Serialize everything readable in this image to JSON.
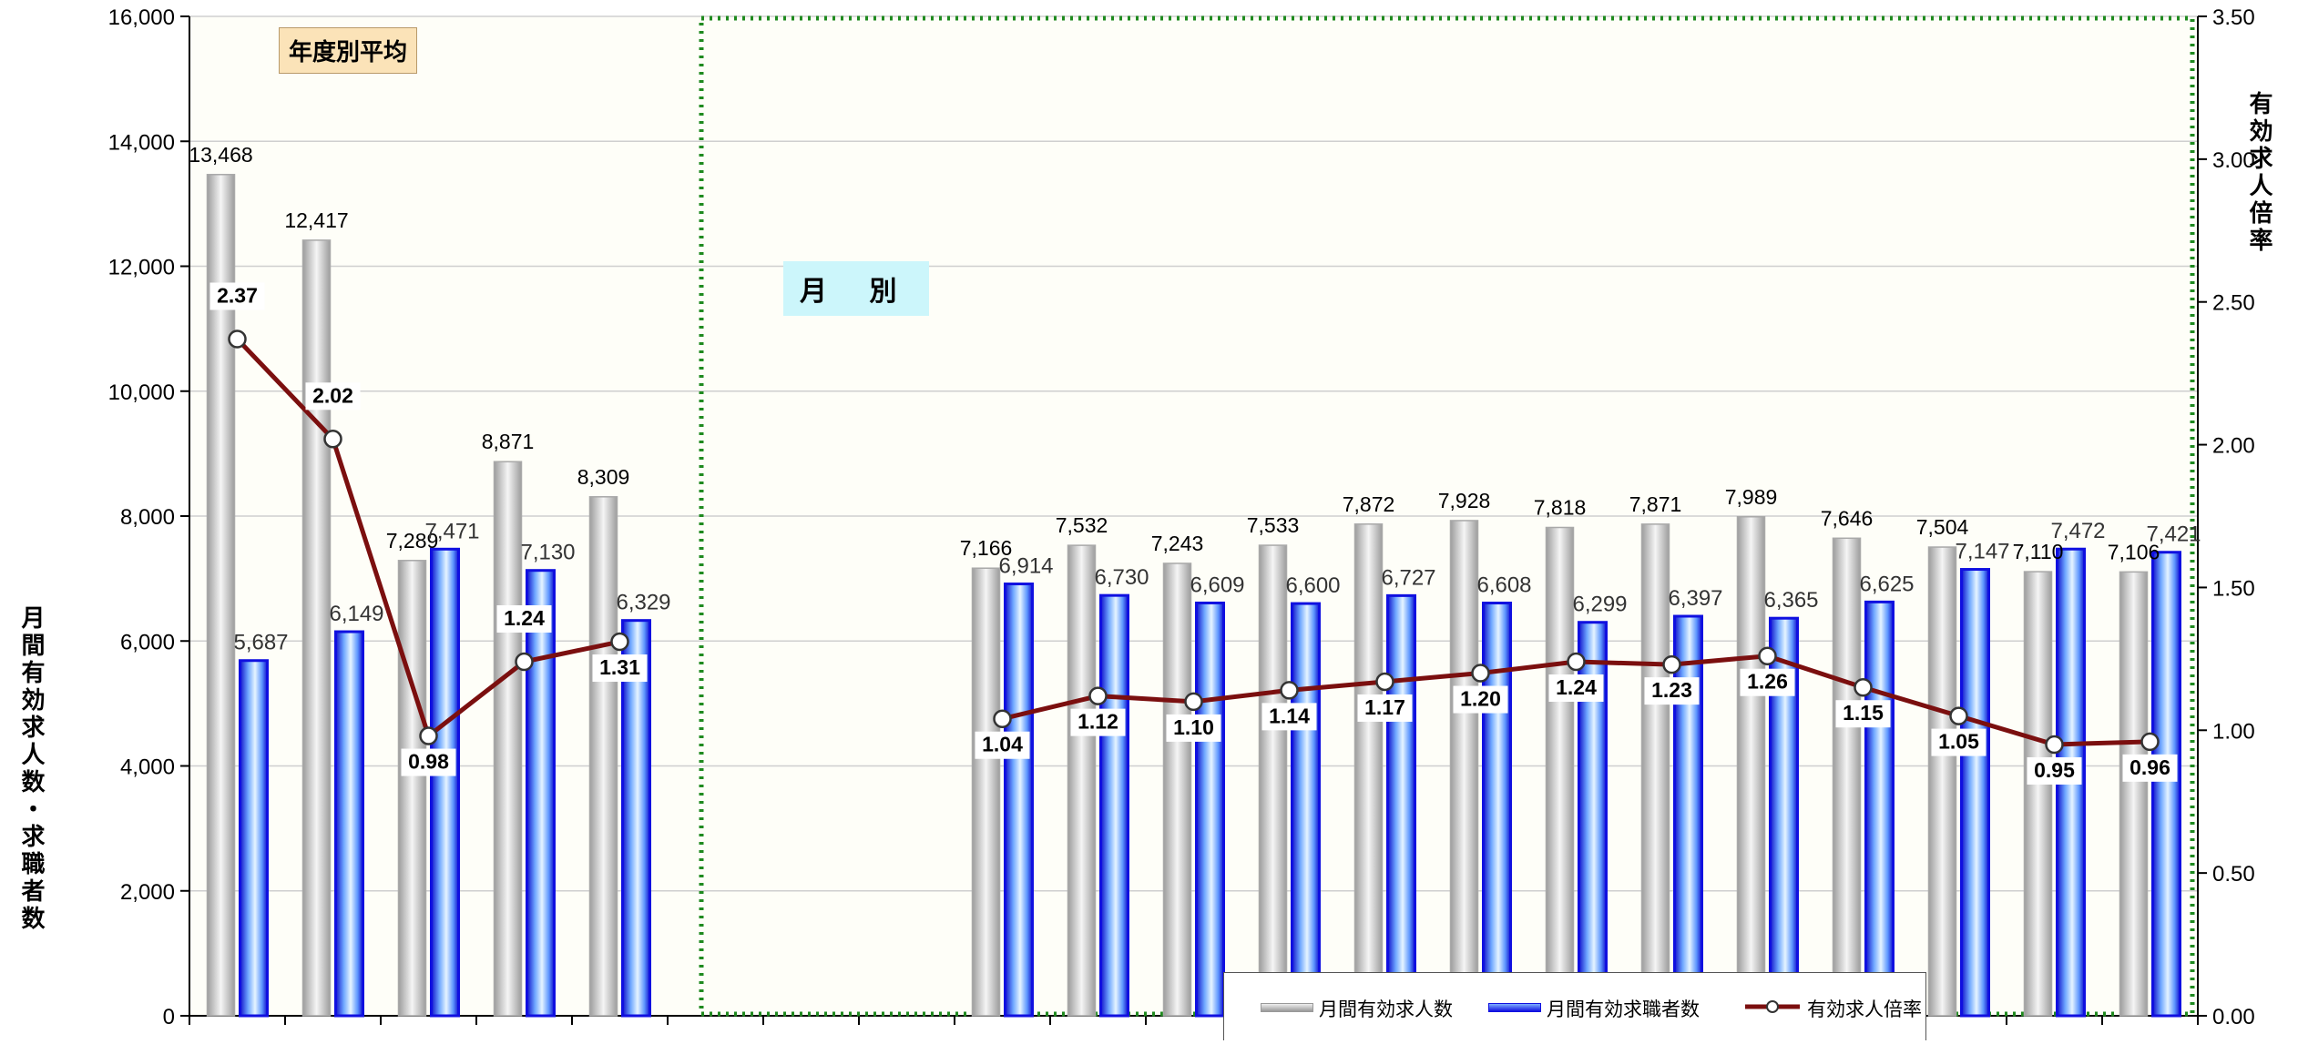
{
  "chart_data": {
    "type": "bar",
    "categories": [
      "",
      "",
      "",
      "",
      "",
      "",
      "",
      "",
      "",
      "",
      "",
      "",
      "",
      "",
      "",
      "",
      "",
      "",
      "",
      "",
      ""
    ],
    "series": [
      {
        "name": "月間有効求人数",
        "type": "bar",
        "axis": "left",
        "values": [
          13468,
          12417,
          7289,
          8871,
          8309,
          null,
          null,
          null,
          7166,
          7532,
          7243,
          7533,
          7872,
          7928,
          7818,
          7871,
          7989,
          7646,
          7504,
          7110,
          7106
        ],
        "labels": [
          "13,468",
          "12,417",
          "7,289",
          "8,871",
          "8,309",
          "",
          "",
          "",
          "7,166",
          "7,532",
          "7,243",
          "7,533",
          "7,872",
          "7,928",
          "7,818",
          "7,871",
          "7,989",
          "7,646",
          "7,504",
          "7,110",
          "7,106"
        ]
      },
      {
        "name": "月間有効求職者数",
        "type": "bar",
        "axis": "left",
        "values": [
          5687,
          6149,
          7471,
          7130,
          6329,
          null,
          null,
          null,
          6914,
          6730,
          6609,
          6600,
          6727,
          6608,
          6299,
          6397,
          6365,
          6625,
          7147,
          7472,
          7421
        ],
        "labels": [
          "5,687",
          "6,149",
          "7,471",
          "7,130",
          "6,329",
          "",
          "",
          "",
          "6,914",
          "6,730",
          "6,609",
          "6,600",
          "6,727",
          "6,608",
          "6,299",
          "6,397",
          "6,365",
          "6,625",
          "7,147",
          "7,472",
          "7,421"
        ]
      },
      {
        "name": "有効求人倍率",
        "type": "line",
        "axis": "right",
        "values": [
          2.37,
          2.02,
          0.98,
          1.24,
          1.31,
          null,
          null,
          null,
          1.04,
          1.12,
          1.1,
          1.14,
          1.17,
          1.2,
          1.24,
          1.23,
          1.26,
          1.15,
          1.05,
          0.95,
          0.96
        ],
        "labels": [
          "2.37",
          "2.02",
          "0.98",
          "1.24",
          "1.31",
          "",
          "",
          "",
          "1.04",
          "1.12",
          "1.10",
          "1.14",
          "1.17",
          "1.20",
          "1.24",
          "1.23",
          "1.26",
          "1.15",
          "1.05",
          "0.95",
          "0.96"
        ]
      }
    ],
    "ylabel": "月間有効求人数・求職者数",
    "y2label": "有効求人倍率",
    "ylim": [
      0,
      16000
    ],
    "y2lim": [
      0,
      3.5
    ],
    "yticks": [
      "0",
      "2,000",
      "4,000",
      "6,000",
      "8,000",
      "10,000",
      "12,000",
      "14,000",
      "16,000"
    ],
    "y2ticks": [
      "0.00",
      "0.50",
      "1.00",
      "1.50",
      "2.00",
      "2.50",
      "3.00",
      "3.50"
    ],
    "grid": true,
    "legend_position": "bottom-center",
    "annotations": {
      "annual": "年度別平均",
      "monthly": "月 別"
    },
    "colors": {
      "series1": "#a9a9a9",
      "series2": "#1010e0",
      "line": "#7b0f0f",
      "dotted_box": "#1f8a1f",
      "plot_bg": "#fefef8"
    }
  }
}
